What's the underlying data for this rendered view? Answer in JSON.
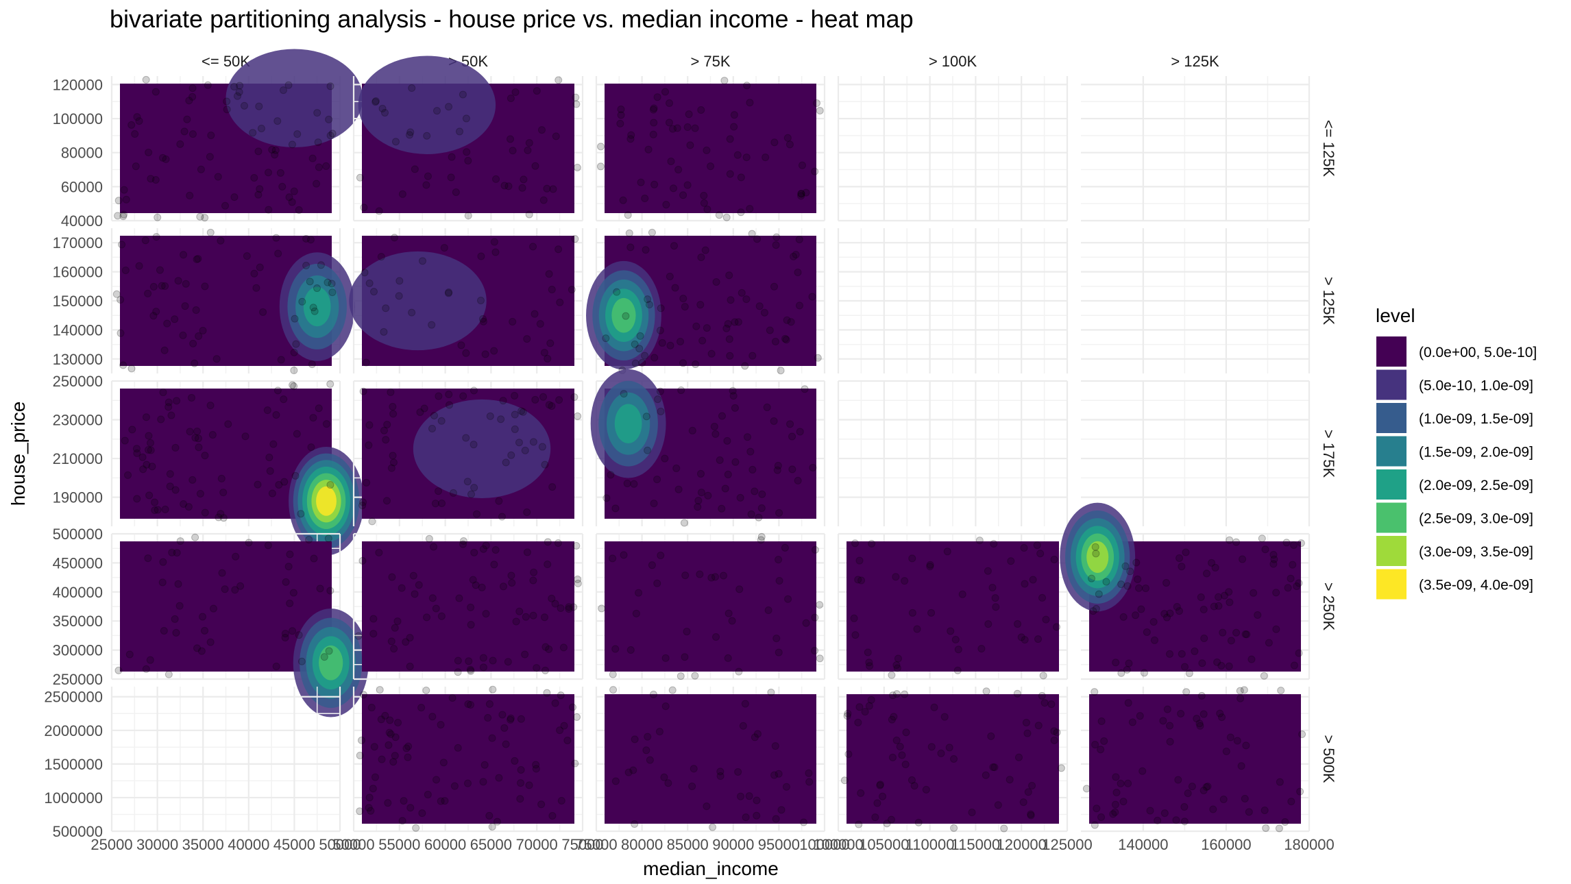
{
  "chart_data": {
    "type": "heatmap",
    "title": "bivariate partitioning analysis - house price vs. median income - heat map",
    "xlabel": "median_income",
    "ylabel": "house_price",
    "grid": true,
    "legend_position": "right",
    "legend": {
      "title": "level",
      "entries": [
        {
          "label": "(0.0e+00, 5.0e-10]",
          "color": "#440154"
        },
        {
          "label": "(5.0e-10, 1.0e-09]",
          "color": "#46337E"
        },
        {
          "label": "(1.0e-09, 1.5e-09]",
          "color": "#365C8D"
        },
        {
          "label": "(1.5e-09, 2.0e-09]",
          "color": "#277F8E"
        },
        {
          "label": "(2.0e-09, 2.5e-09]",
          "color": "#1FA187"
        },
        {
          "label": "(2.5e-09, 3.0e-09]",
          "color": "#4AC16D"
        },
        {
          "label": "(3.0e-09, 3.5e-09]",
          "color": "#9FDA3A"
        },
        {
          "label": "(3.5e-09, 4.0e-09]",
          "color": "#FDE725"
        }
      ]
    },
    "columns": [
      {
        "label": "<= 50K",
        "xlim": [
          25000,
          50000
        ],
        "ticks": [
          25000,
          30000,
          35000,
          40000,
          45000,
          50000
        ]
      },
      {
        "label": ">  50K",
        "xlim": [
          50000,
          75000
        ],
        "ticks": [
          50000,
          55000,
          60000,
          65000,
          70000,
          75000
        ]
      },
      {
        "label": ">  75K",
        "xlim": [
          75000,
          100000
        ],
        "ticks": [
          75000,
          80000,
          85000,
          90000,
          95000,
          100000
        ]
      },
      {
        "label": "> 100K",
        "xlim": [
          100000,
          125000
        ],
        "ticks": [
          100000,
          105000,
          110000,
          115000,
          120000,
          125000
        ]
      },
      {
        "label": "> 125K",
        "xlim": [
          125000,
          180000
        ],
        "ticks": [
          140000,
          160000,
          180000
        ]
      }
    ],
    "rows": [
      {
        "label": "<= 125K",
        "ylim": [
          40000,
          125000
        ],
        "ticks": [
          40000,
          60000,
          80000,
          100000,
          120000
        ]
      },
      {
        "label": ">  125K",
        "ylim": [
          125000,
          175000
        ],
        "ticks": [
          130000,
          140000,
          150000,
          160000,
          170000
        ]
      },
      {
        "label": ">  175K",
        "ylim": [
          175000,
          250000
        ],
        "ticks": [
          190000,
          210000,
          230000,
          250000
        ]
      },
      {
        "label": "> 250K",
        "ylim": [
          250000,
          500000
        ],
        "ticks": [
          250000,
          300000,
          350000,
          400000,
          450000,
          500000
        ]
      },
      {
        "label": "> 500K",
        "ylim": [
          500000,
          2650000
        ],
        "ticks": [
          500000,
          1000000,
          1500000,
          2000000,
          2500000
        ]
      }
    ],
    "panels_with_data": [
      [
        0,
        0
      ],
      [
        0,
        1
      ],
      [
        0,
        2
      ],
      [
        1,
        0
      ],
      [
        1,
        1
      ],
      [
        1,
        2
      ],
      [
        2,
        0
      ],
      [
        2,
        1
      ],
      [
        2,
        2
      ],
      [
        3,
        0
      ],
      [
        3,
        1
      ],
      [
        3,
        2
      ],
      [
        3,
        3
      ],
      [
        3,
        4
      ],
      [
        4,
        1
      ],
      [
        4,
        2
      ],
      [
        4,
        3
      ],
      [
        4,
        4
      ]
    ],
    "density_hotspots": [
      {
        "row": 0,
        "col": 0,
        "x": 45000,
        "y": 112000,
        "level": 2
      },
      {
        "row": 0,
        "col": 1,
        "x": 58000,
        "y": 108000,
        "level": 2
      },
      {
        "row": 1,
        "col": 0,
        "x": 47500,
        "y": 148000,
        "level": 5
      },
      {
        "row": 1,
        "col": 1,
        "x": 57000,
        "y": 150000,
        "level": 2
      },
      {
        "row": 1,
        "col": 2,
        "x": 78000,
        "y": 145000,
        "level": 6
      },
      {
        "row": 2,
        "col": 0,
        "x": 48500,
        "y": 188000,
        "level": 8
      },
      {
        "row": 2,
        "col": 1,
        "x": 64000,
        "y": 215000,
        "level": 2
      },
      {
        "row": 2,
        "col": 2,
        "x": 78500,
        "y": 228000,
        "level": 5
      },
      {
        "row": 3,
        "col": 0,
        "x": 49000,
        "y": 278000,
        "level": 6
      },
      {
        "row": 3,
        "col": 4,
        "x": 129000,
        "y": 460000,
        "level": 7
      }
    ]
  }
}
